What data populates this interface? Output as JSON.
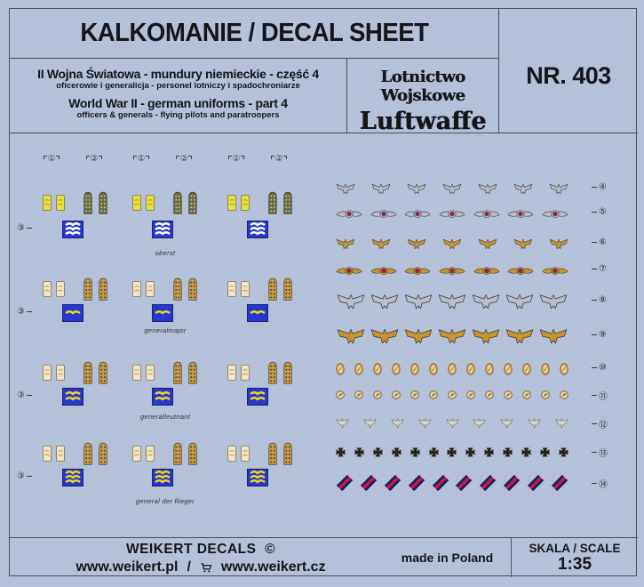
{
  "header": {
    "title": "KALKOMANIE / DECAL SHEET",
    "series_pl": "II Wojna Światowa - mundury niemieckie - część 4",
    "series_pl_sub": "oficerowie i generalicja - personel lotniczy i spadochroniarze",
    "series_en": "World War II - german uniforms - part 4",
    "series_en_sub": "officers & generals - flying pilots and paratroopers",
    "theme_line1": "Lotnictwo Wojskowe",
    "theme_line2": "Luftwaffe",
    "sheet_number": "NR. 403"
  },
  "footer": {
    "brand": "WEIKERT DECALS",
    "copyright_symbol": "©",
    "website_pl": "www.weikert.pl",
    "separator": "/",
    "cart_icon": "shopping-cart-icon",
    "website_cz": "www.weikert.cz",
    "origin": "made in Poland",
    "scale_label": "SKALA / SCALE",
    "scale_value": "1:35"
  },
  "colors": {
    "background": "#b5c1d8",
    "border": "#4b505e",
    "text": "#15151a",
    "silver": "#b9bec8",
    "gold": "#c9952f",
    "pale": "#d8d8c4",
    "cross_black": "#26241f",
    "patch_blue": "#2736cf",
    "stripe_white": "#ffffff",
    "stripe_yellow": "#ecd61e",
    "tab_yellow": "#e4e03c",
    "tab_cream": "#f3e4c2",
    "board_dark": "#6b6b54",
    "board_dark_dots": "#d9cc4e",
    "board_gold": "#c79d4a",
    "board_gold_dots": "#4a3c1a",
    "ribbon_navy": "#1b1b6b",
    "ribbon_red": "#e01125",
    "cockade_center": "#d4156a"
  },
  "decals": {
    "column_markers": [
      "①",
      "②"
    ],
    "group_marker": "③",
    "left_groups": [
      {
        "label": "oberst",
        "tab_color": "tab_yellow",
        "board_color": "board_dark",
        "board_dot_color": "board_dark_dots",
        "stripe_color": "stripe_white",
        "stripe_count": 3
      },
      {
        "label": "generalmajor",
        "tab_color": "tab_cream",
        "board_color": "board_gold",
        "board_dot_color": "board_gold_dots",
        "stripe_color": "stripe_yellow",
        "stripe_count": 1
      },
      {
        "label": "generalleutnant",
        "tab_color": "tab_cream",
        "board_color": "board_gold",
        "board_dot_color": "board_gold_dots",
        "stripe_color": "stripe_yellow",
        "stripe_count": 2
      },
      {
        "label": "general der flieger",
        "tab_color": "tab_cream",
        "board_color": "board_gold",
        "board_dot_color": "board_gold_dots",
        "stripe_color": "stripe_yellow",
        "stripe_count": 3
      }
    ],
    "right_rows": [
      {
        "marker": "④",
        "type": "eagle-small",
        "color": "silver",
        "count": 7
      },
      {
        "marker": "⑤",
        "type": "wing-badge",
        "color": "silver",
        "count": 7
      },
      {
        "marker": "⑥",
        "type": "eagle-small",
        "color": "gold",
        "count": 7
      },
      {
        "marker": "⑦",
        "type": "wing-badge",
        "color": "gold",
        "count": 7
      },
      {
        "marker": "⑧",
        "type": "eagle-large",
        "color": "silver",
        "count": 7
      },
      {
        "marker": "⑨",
        "type": "eagle-large",
        "color": "gold",
        "count": 7
      },
      {
        "marker": "⑩",
        "type": "oval-button",
        "color": "gold",
        "count": 13
      },
      {
        "marker": "⑪",
        "type": "round-button",
        "color": "gold",
        "count": 13
      },
      {
        "marker": "⑫",
        "type": "eagle-tiny",
        "color": "pale",
        "count": 9
      },
      {
        "marker": "⑬",
        "type": "iron-cross",
        "color": "cross_black",
        "count": 13
      },
      {
        "marker": "⑭",
        "type": "ribbon-bar",
        "color": "ribbon_navy",
        "count": 10
      }
    ]
  }
}
